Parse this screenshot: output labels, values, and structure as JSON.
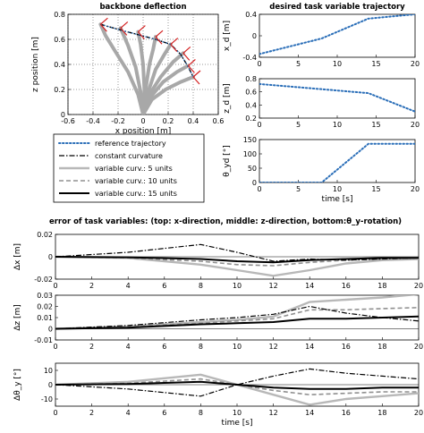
{
  "figure_title_bottom": "error of task variables: (top: x-direction, middle: z-direction, bottom:θ_y-rotation)",
  "colors": {
    "reference": "#2a6eb8",
    "constant": "#000000",
    "var5": "#b8b8b8",
    "var10": "#909090",
    "var15": "#000000",
    "frame_red": "#d42020"
  },
  "legend": {
    "items": [
      {
        "key": "reference",
        "label": "reference trajectory",
        "style": "dotted"
      },
      {
        "key": "constant",
        "label": "constant curvature",
        "style": "dashdot"
      },
      {
        "key": "var5",
        "label": "variable curv.: 5 units",
        "style": "solid-light"
      },
      {
        "key": "var10",
        "label": "variable curv.: 10 units",
        "style": "dashed"
      },
      {
        "key": "var15",
        "label": "variable curv.: 15 units",
        "style": "solid-thick"
      }
    ]
  },
  "chart_data": [
    {
      "id": "backbone",
      "type": "line",
      "title": "backbone deflection",
      "xlabel": "x position [m]",
      "ylabel": "z position [m]",
      "xlim": [
        -0.6,
        0.6
      ],
      "ylim": [
        0,
        0.8
      ],
      "xticks": [
        "-0.6",
        "-0.4",
        "-0.2",
        "0",
        "0.2",
        "0.4",
        "0.6"
      ],
      "xtick_values": [
        -0.6,
        -0.4,
        -0.2,
        0,
        0.2,
        0.4,
        0.6
      ],
      "yticks": [
        "0",
        "0.2",
        "0.4",
        "0.6",
        "0.8"
      ],
      "ytick_values": [
        0,
        0.2,
        0.4,
        0.6,
        0.8
      ],
      "grid": true,
      "target_path": {
        "x": [
          -0.34,
          -0.2,
          -0.05,
          0.1,
          0.22,
          0.3,
          0.36,
          0.4
        ],
        "y": [
          0.72,
          0.68,
          0.64,
          0.6,
          0.56,
          0.48,
          0.38,
          0.3
        ]
      },
      "backbones": [
        {
          "x": [
            0,
            -0.04,
            -0.12,
            -0.22,
            -0.3,
            -0.34
          ],
          "y": [
            0,
            0.16,
            0.34,
            0.5,
            0.63,
            0.72
          ]
        },
        {
          "x": [
            0,
            -0.02,
            -0.06,
            -0.12,
            -0.18
          ],
          "y": [
            0,
            0.18,
            0.38,
            0.55,
            0.69
          ]
        },
        {
          "x": [
            0,
            0.01,
            0.0,
            -0.02,
            -0.04
          ],
          "y": [
            0,
            0.2,
            0.4,
            0.56,
            0.66
          ]
        },
        {
          "x": [
            0,
            0.02,
            0.05,
            0.08,
            0.1
          ],
          "y": [
            0,
            0.2,
            0.4,
            0.52,
            0.62
          ]
        },
        {
          "x": [
            0,
            0.04,
            0.1,
            0.17,
            0.22
          ],
          "y": [
            0,
            0.18,
            0.36,
            0.48,
            0.56
          ]
        },
        {
          "x": [
            0,
            0.05,
            0.14,
            0.24,
            0.32
          ],
          "y": [
            0,
            0.16,
            0.3,
            0.42,
            0.49
          ]
        },
        {
          "x": [
            0,
            0.06,
            0.16,
            0.27,
            0.36
          ],
          "y": [
            0,
            0.14,
            0.26,
            0.34,
            0.39
          ]
        },
        {
          "x": [
            0,
            0.07,
            0.18,
            0.3,
            0.4
          ],
          "y": [
            0,
            0.12,
            0.2,
            0.26,
            0.3
          ]
        }
      ],
      "tip_frames": {
        "x": [
          -0.34,
          -0.18,
          -0.04,
          0.1,
          0.22,
          0.32,
          0.36,
          0.4
        ],
        "y": [
          0.72,
          0.69,
          0.66,
          0.62,
          0.56,
          0.49,
          0.39,
          0.3
        ]
      }
    },
    {
      "id": "xd",
      "type": "line",
      "title": "desired task variable trajectory",
      "ylabel": "x_d [m]",
      "xlim": [
        0,
        20
      ],
      "ylim": [
        -0.4,
        0.4
      ],
      "xticks": [
        "0",
        "5",
        "10",
        "15",
        "20"
      ],
      "xtick_values": [
        0,
        5,
        10,
        15,
        20
      ],
      "yticks": [
        "-0.4",
        "0",
        "0.4"
      ],
      "ytick_values": [
        -0.4,
        0,
        0.4
      ],
      "series": [
        {
          "key": "reference",
          "x": [
            0,
            8,
            14,
            20
          ],
          "y": [
            -0.34,
            -0.05,
            0.32,
            0.4
          ]
        }
      ]
    },
    {
      "id": "zd",
      "type": "line",
      "ylabel": "z_d [m]",
      "xlim": [
        0,
        20
      ],
      "ylim": [
        0.2,
        0.8
      ],
      "xticks": [
        "0",
        "5",
        "10",
        "15",
        "20"
      ],
      "xtick_values": [
        0,
        5,
        10,
        15,
        20
      ],
      "yticks": [
        "0.2",
        "0.4",
        "0.6",
        "0.8"
      ],
      "ytick_values": [
        0.2,
        0.4,
        0.6,
        0.8
      ],
      "series": [
        {
          "key": "reference",
          "x": [
            0,
            8,
            14,
            20
          ],
          "y": [
            0.72,
            0.64,
            0.58,
            0.3
          ]
        }
      ]
    },
    {
      "id": "theta",
      "type": "line",
      "ylabel": "θ_yd [°]",
      "xlabel": "time [s]",
      "xlim": [
        0,
        20
      ],
      "ylim": [
        0,
        150
      ],
      "xticks": [
        "0",
        "5",
        "10",
        "15",
        "20"
      ],
      "xtick_values": [
        0,
        5,
        10,
        15,
        20
      ],
      "yticks": [
        "0",
        "50",
        "100",
        "150"
      ],
      "ytick_values": [
        0,
        50,
        100,
        150
      ],
      "series": [
        {
          "key": "reference",
          "x": [
            0,
            8,
            14,
            20
          ],
          "y": [
            0,
            0,
            135,
            135
          ]
        }
      ]
    },
    {
      "id": "err_x",
      "type": "line",
      "ylabel": "Δx [m]",
      "xlim": [
        0,
        20
      ],
      "ylim": [
        -0.02,
        0.02
      ],
      "xticks": [
        "0",
        "2",
        "4",
        "6",
        "8",
        "10",
        "12",
        "14",
        "16",
        "18",
        "20"
      ],
      "xtick_values": [
        0,
        2,
        4,
        6,
        8,
        10,
        12,
        14,
        16,
        18,
        20
      ],
      "yticks": [
        "-0.02",
        "0",
        "0.02"
      ],
      "ytick_values": [
        -0.02,
        0,
        0.02
      ],
      "series": [
        {
          "key": "var5",
          "x": [
            0,
            4,
            8,
            10,
            12,
            14,
            16,
            18,
            20
          ],
          "y": [
            0,
            -0.001,
            -0.007,
            -0.012,
            -0.017,
            -0.012,
            -0.006,
            -0.003,
            -0.002
          ]
        },
        {
          "key": "var10",
          "x": [
            0,
            4,
            8,
            10,
            12,
            14,
            16,
            18,
            20
          ],
          "y": [
            0,
            -0.001,
            -0.004,
            -0.007,
            -0.008,
            -0.005,
            -0.003,
            -0.002,
            -0.001
          ]
        },
        {
          "key": "var15",
          "x": [
            0,
            4,
            8,
            10,
            12,
            14,
            16,
            18,
            20
          ],
          "y": [
            0,
            -0.0005,
            -0.002,
            -0.004,
            -0.005,
            -0.003,
            -0.002,
            -0.001,
            -0.001
          ]
        },
        {
          "key": "constant",
          "x": [
            0,
            4,
            8,
            10,
            12,
            14,
            16,
            18,
            20
          ],
          "y": [
            0,
            0.004,
            0.011,
            0.004,
            -0.004,
            -0.002,
            -0.003,
            -0.002,
            -0.001
          ]
        }
      ]
    },
    {
      "id": "err_z",
      "type": "line",
      "ylabel": "Δz [m]",
      "xlim": [
        0,
        20
      ],
      "ylim": [
        -0.01,
        0.03
      ],
      "xticks": [
        "0",
        "2",
        "4",
        "6",
        "8",
        "10",
        "12",
        "14",
        "16",
        "18",
        "20"
      ],
      "xtick_values": [
        0,
        2,
        4,
        6,
        8,
        10,
        12,
        14,
        16,
        18,
        20
      ],
      "yticks": [
        "-0.01",
        "0",
        "0.01",
        "0.02",
        "0.03"
      ],
      "ytick_values": [
        -0.01,
        0,
        0.01,
        0.02,
        0.03
      ],
      "series": [
        {
          "key": "var5",
          "x": [
            0,
            4,
            8,
            10,
            12,
            14,
            16,
            18,
            20
          ],
          "y": [
            0,
            0.002,
            0.006,
            0.008,
            0.011,
            0.024,
            0.026,
            0.028,
            0.031
          ]
        },
        {
          "key": "var10",
          "x": [
            0,
            4,
            8,
            10,
            12,
            14,
            16,
            18,
            20
          ],
          "y": [
            0,
            0.002,
            0.005,
            0.007,
            0.009,
            0.017,
            0.017,
            0.018,
            0.019
          ]
        },
        {
          "key": "var15",
          "x": [
            0,
            4,
            8,
            10,
            12,
            14,
            16,
            18,
            20
          ],
          "y": [
            0,
            0.001,
            0.004,
            0.005,
            0.006,
            0.009,
            0.009,
            0.01,
            0.011
          ]
        },
        {
          "key": "constant",
          "x": [
            0,
            4,
            8,
            10,
            12,
            14,
            16,
            18,
            20
          ],
          "y": [
            0,
            0.003,
            0.008,
            0.01,
            0.013,
            0.02,
            0.014,
            0.01,
            0.007
          ]
        }
      ]
    },
    {
      "id": "err_theta",
      "type": "line",
      "ylabel": "Δθ_y [°]",
      "xlabel": "time [s]",
      "xlim": [
        0,
        20
      ],
      "ylim": [
        -15,
        15
      ],
      "xticks": [
        "0",
        "2",
        "4",
        "6",
        "8",
        "10",
        "12",
        "14",
        "16",
        "18",
        "20"
      ],
      "xtick_values": [
        0,
        2,
        4,
        6,
        8,
        10,
        12,
        14,
        16,
        18,
        20
      ],
      "yticks": [
        "-10",
        "0",
        "10"
      ],
      "ytick_values": [
        -10,
        0,
        10
      ],
      "series": [
        {
          "key": "var5",
          "x": [
            0,
            4,
            8,
            10,
            12,
            14,
            16,
            18,
            20
          ],
          "y": [
            0,
            2,
            7,
            0,
            -7,
            -14,
            -10,
            -8,
            -6
          ]
        },
        {
          "key": "var10",
          "x": [
            0,
            4,
            8,
            10,
            12,
            14,
            16,
            18,
            20
          ],
          "y": [
            0,
            1,
            4,
            0,
            -4,
            -7,
            -6,
            -5,
            -5
          ]
        },
        {
          "key": "var15",
          "x": [
            0,
            4,
            8,
            10,
            12,
            14,
            16,
            18,
            20
          ],
          "y": [
            0,
            0.5,
            2,
            0,
            -2,
            -3,
            -3,
            -2,
            -2
          ]
        },
        {
          "key": "constant",
          "x": [
            0,
            4,
            8,
            10,
            12,
            14,
            16,
            18,
            20
          ],
          "y": [
            0,
            -3,
            -8,
            0,
            6,
            11,
            8,
            6,
            4
          ]
        }
      ]
    }
  ]
}
